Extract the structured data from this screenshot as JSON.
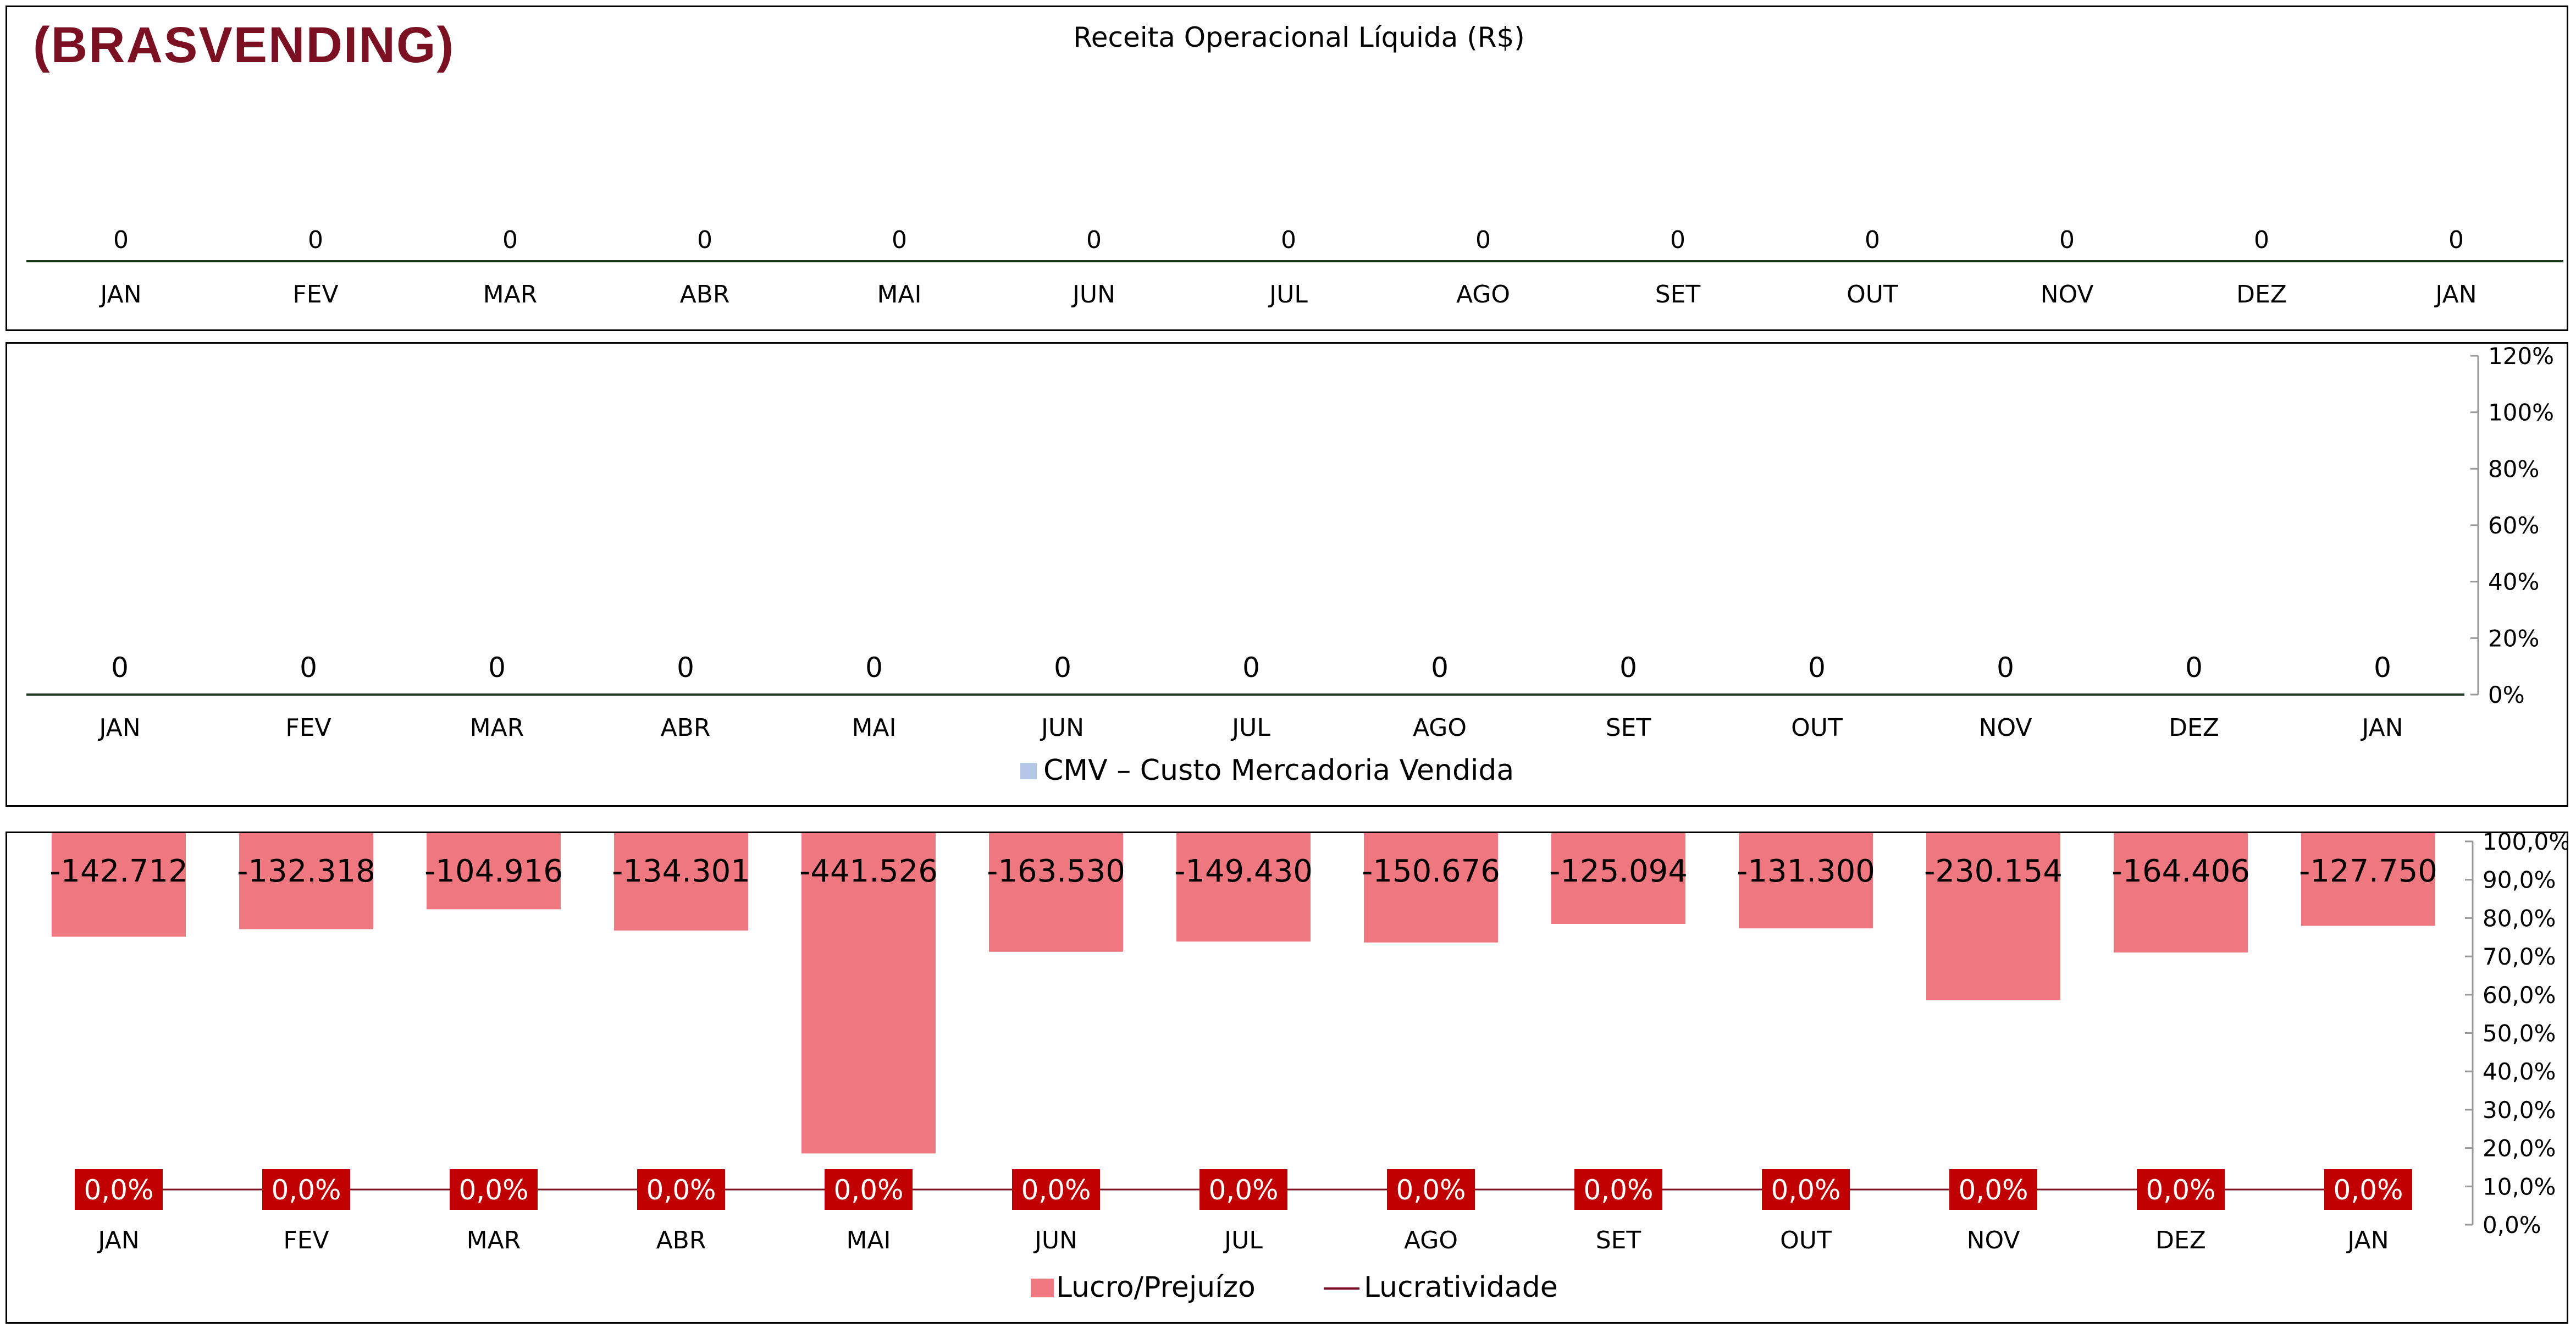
{
  "brand": "(BRASVENDING)",
  "colors": {
    "brand": "#7a1022",
    "bar": "#ef7880",
    "badge": "#c00000",
    "axis": "#1e3a1e",
    "cmv_marker": "#b4c7e7",
    "line": "#7a1022"
  },
  "chart_data": [
    {
      "type": "bar",
      "title": "Receita Operacional Líquida (R$)",
      "categories": [
        "JAN",
        "FEV",
        "MAR",
        "ABR",
        "MAI",
        "JUN",
        "JUL",
        "AGO",
        "SET",
        "OUT",
        "NOV",
        "DEZ",
        "JAN"
      ],
      "values": [
        0,
        0,
        0,
        0,
        0,
        0,
        0,
        0,
        0,
        0,
        0,
        0,
        0
      ],
      "data_labels": [
        "0",
        "0",
        "0",
        "0",
        "0",
        "0",
        "0",
        "0",
        "0",
        "0",
        "0",
        "0",
        "0"
      ],
      "grid": false
    },
    {
      "type": "bar",
      "title": "",
      "categories": [
        "JAN",
        "FEV",
        "MAR",
        "ABR",
        "MAI",
        "JUN",
        "JUL",
        "AGO",
        "SET",
        "OUT",
        "NOV",
        "DEZ",
        "JAN"
      ],
      "series": [
        {
          "name": "CMV – Custo Mercadoria Vendida",
          "values": [
            0,
            0,
            0,
            0,
            0,
            0,
            0,
            0,
            0,
            0,
            0,
            0,
            0
          ]
        }
      ],
      "data_labels": [
        "0",
        "0",
        "0",
        "0",
        "0",
        "0",
        "0",
        "0",
        "0",
        "0",
        "0",
        "0",
        "0"
      ],
      "y2_ticks": [
        "120%",
        "100%",
        "80%",
        "60%",
        "40%",
        "20%",
        "0%"
      ],
      "y2_range": [
        0,
        1.2
      ],
      "legend": "bottom",
      "grid": false
    },
    {
      "type": "bar",
      "title": "",
      "categories": [
        "JAN",
        "FEV",
        "MAR",
        "ABR",
        "MAI",
        "JUN",
        "JUL",
        "AGO",
        "SET",
        "OUT",
        "NOV",
        "DEZ",
        "JAN"
      ],
      "series": [
        {
          "name": "Lucro/Prejuízo",
          "kind": "bar",
          "values": [
            -142712,
            -132318,
            -104916,
            -134301,
            -441526,
            -163530,
            -149430,
            -150676,
            -125094,
            -131300,
            -230154,
            -164406,
            -127750
          ]
        },
        {
          "name": "Lucratividade",
          "kind": "line",
          "values": [
            0,
            0,
            0,
            0,
            0,
            0,
            0,
            0,
            0,
            0,
            0,
            0,
            0
          ]
        }
      ],
      "bar_labels": [
        "-142.712",
        "-132.318",
        "-104.916",
        "-134.301",
        "-441.526",
        "-163.530",
        "-149.430",
        "-150.676",
        "-125.094",
        "-131.300",
        "-230.154",
        "-164.406",
        "-127.750"
      ],
      "line_labels": [
        "0,0%",
        "0,0%",
        "0,0%",
        "0,0%",
        "0,0%",
        "0,0%",
        "0,0%",
        "0,0%",
        "0,0%",
        "0,0%",
        "0,0%",
        "0,0%",
        "0,0%"
      ],
      "y_range": [
        -470000,
        0
      ],
      "y2_ticks": [
        "100,0%",
        "90,0%",
        "80,0%",
        "70,0%",
        "60,0%",
        "50,0%",
        "40,0%",
        "30,0%",
        "20,0%",
        "10,0%",
        "0,0%"
      ],
      "y2_range": [
        0,
        1
      ],
      "legend": "bottom",
      "grid": false
    }
  ]
}
